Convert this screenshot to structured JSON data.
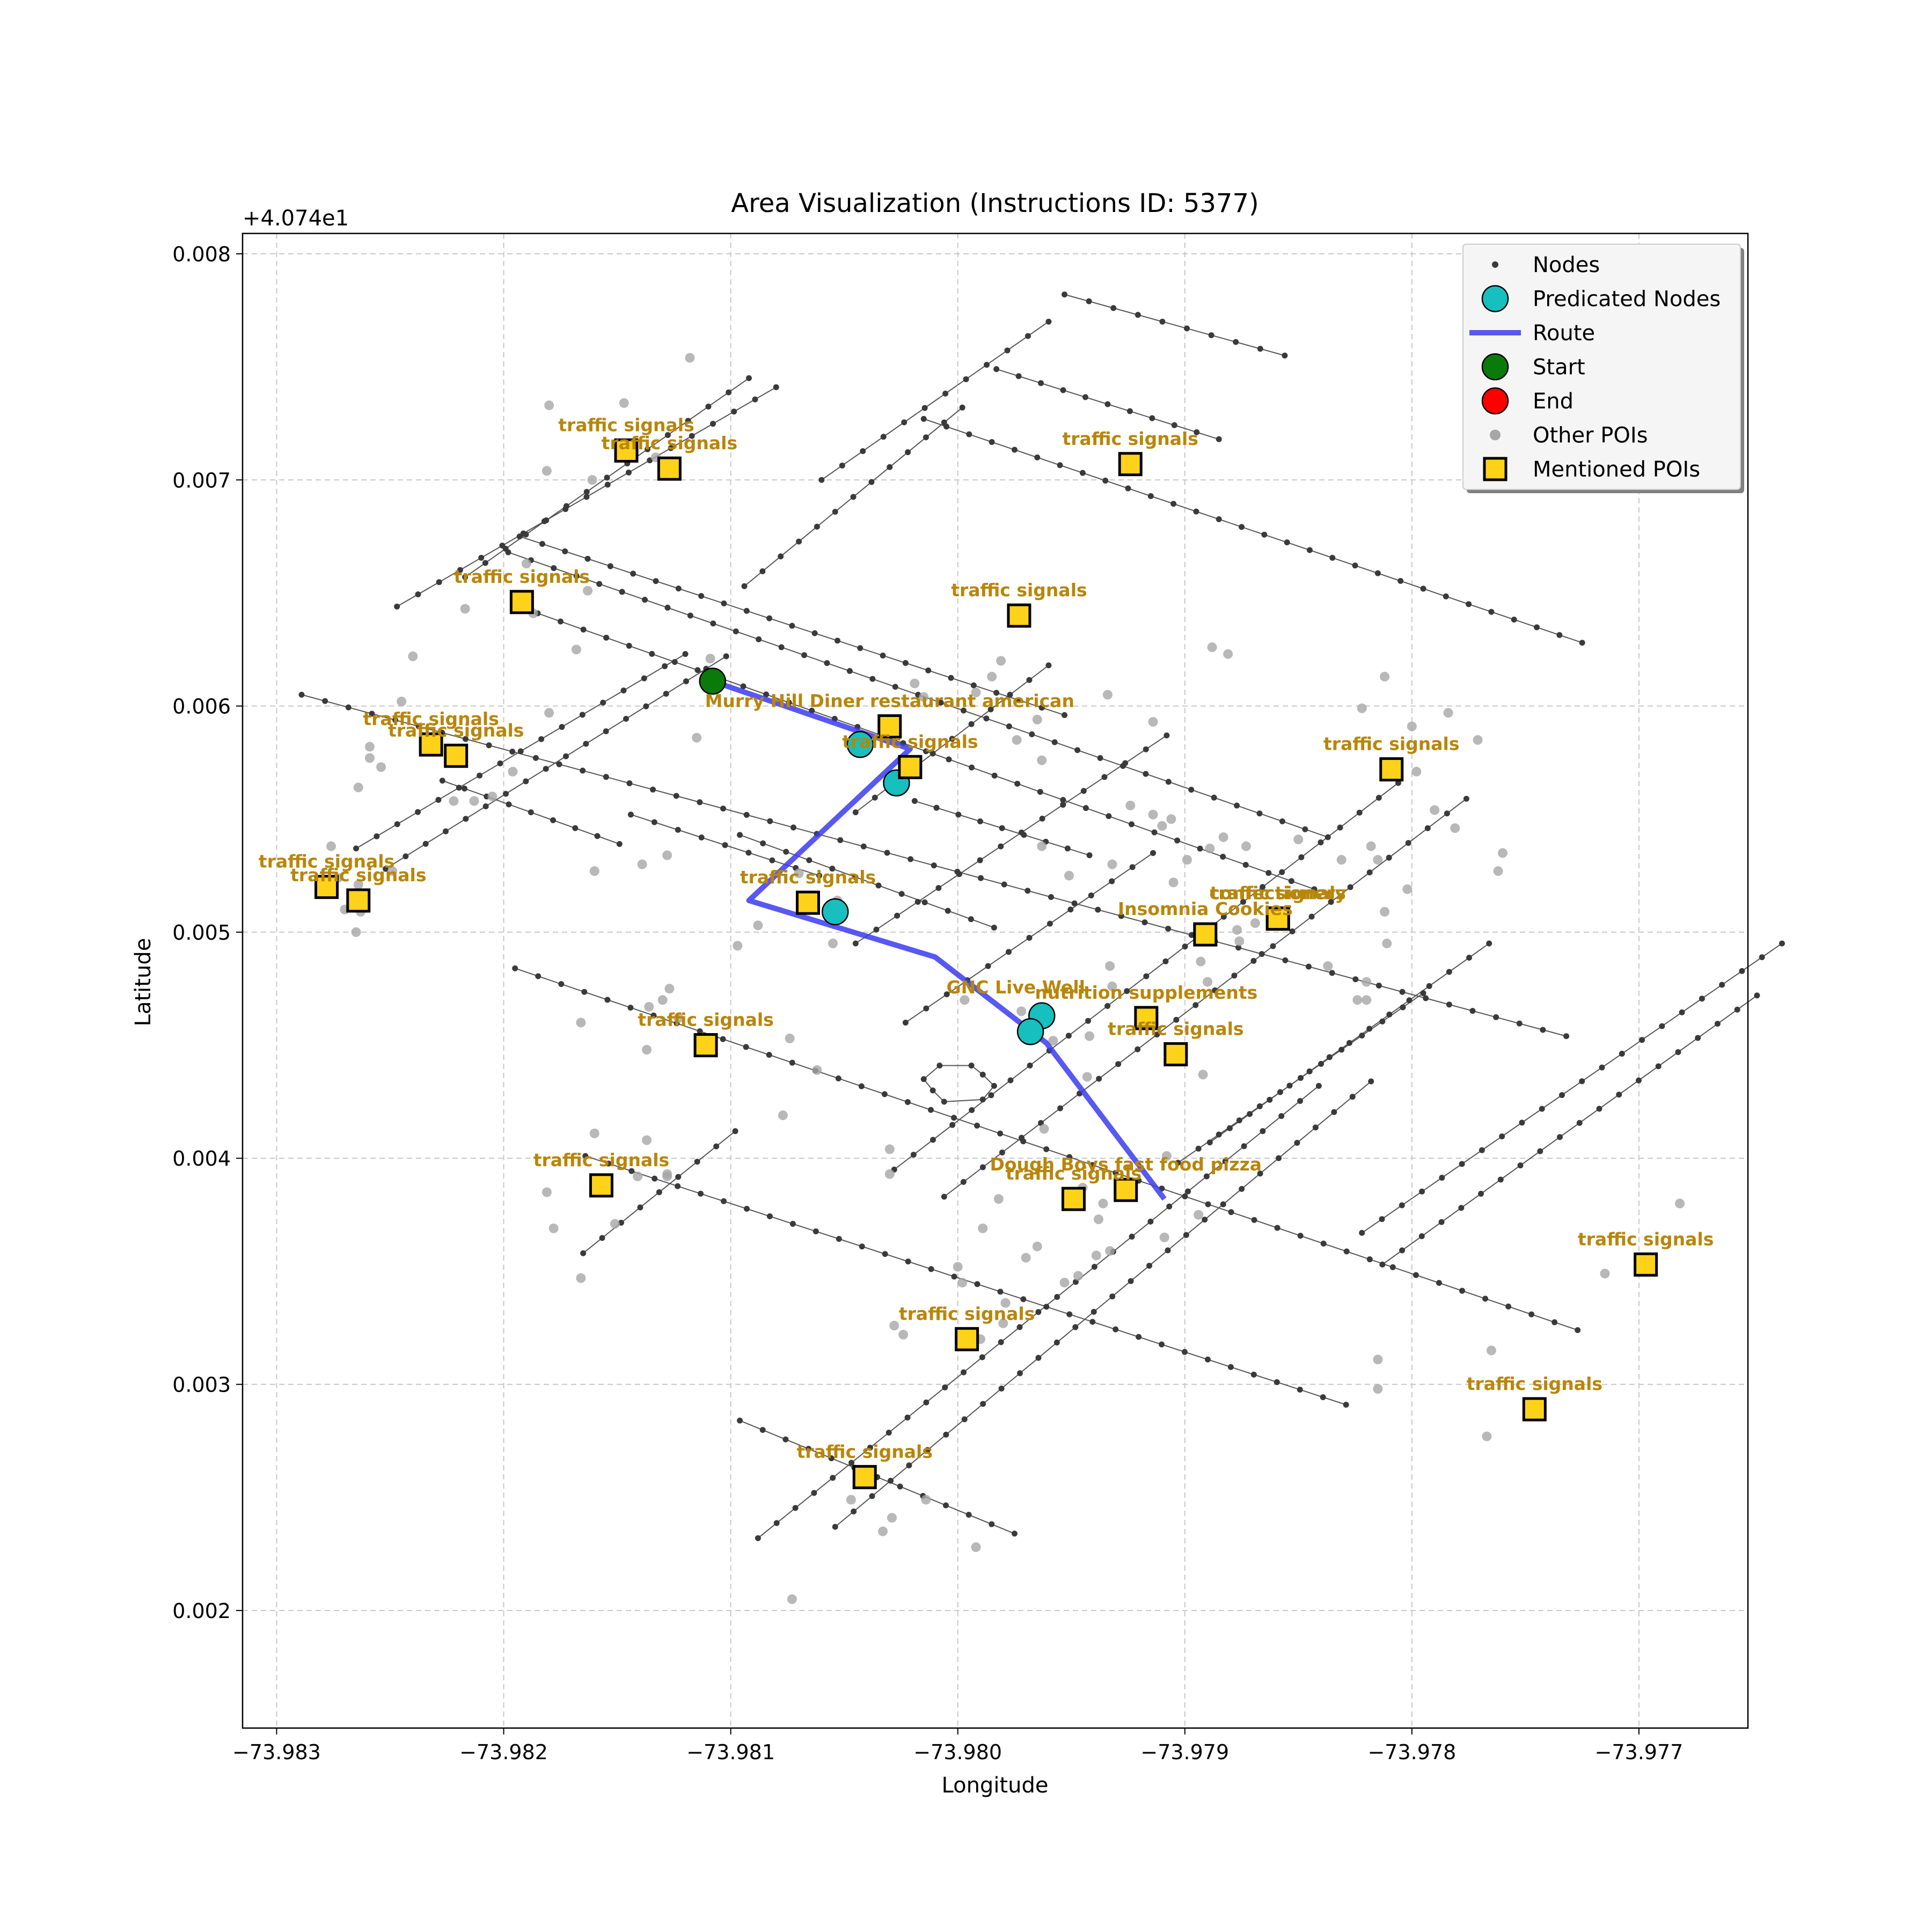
{
  "chart_data": {
    "type": "scatter",
    "title": "Area Visualization (Instructions ID: 5377)",
    "xlabel": "Longitude",
    "ylabel": "Latitude",
    "y_offset_label": "+4.074e1",
    "y_offset": 40.74,
    "xlim": [
      -73.98315,
      -73.97652
    ],
    "ylim": [
      0.00148,
      0.00809
    ],
    "xticks": [
      -73.983,
      -73.982,
      -73.981,
      -73.98,
      -73.979,
      -73.978,
      -73.977
    ],
    "xtick_labels": [
      "−73.983",
      "−73.982",
      "−73.981",
      "−73.980",
      "−73.979",
      "−73.978",
      "−73.977"
    ],
    "yticks": [
      0.002,
      0.003,
      0.004,
      0.005,
      0.006,
      0.007,
      0.008
    ],
    "ytick_labels": [
      "0.002",
      "0.003",
      "0.004",
      "0.005",
      "0.006",
      "0.007",
      "0.008"
    ],
    "grid": true,
    "legend_position": "upper right",
    "legend": [
      {
        "label": "Nodes",
        "marker": "node"
      },
      {
        "label": "Predicated Nodes",
        "marker": "predicated"
      },
      {
        "label": "Route",
        "marker": "route"
      },
      {
        "label": "Start",
        "marker": "start"
      },
      {
        "label": "End",
        "marker": "end"
      },
      {
        "label": "Other POIs",
        "marker": "poi"
      },
      {
        "label": "Mentioned POIs",
        "marker": "mentioned"
      }
    ],
    "colors": {
      "node": "#3a3a3a",
      "edge": "#555555",
      "predicated": "#17bfbf",
      "route": "#3b3bf0",
      "start": "#0a7a0a",
      "end": "#ff0000",
      "poi": "#a6a6a6",
      "mentioned_fill": "#ffd21a",
      "label": "#b8860b"
    },
    "streets": [
      [
        [
          -73.98015,
          0.00727
        ],
        [
          -73.97725,
          0.00628
        ]
      ],
      [
        [
          -73.98198,
          0.00668
        ],
        [
          -73.97837,
          0.00542
        ]
      ],
      [
        [
          -73.98185,
          0.00641
        ],
        [
          -73.97843,
          0.00519
        ]
      ],
      [
        [
          -73.98289,
          0.00605
        ],
        [
          -73.97732,
          0.00454
        ]
      ],
      [
        [
          -73.98195,
          0.00484
        ],
        [
          -73.97727,
          0.00324
        ]
      ],
      [
        [
          -73.98164,
          0.00401
        ],
        [
          -73.97829,
          0.00291
        ]
      ],
      [
        [
          -73.98096,
          0.00284
        ],
        [
          -73.97975,
          0.00234
        ]
      ],
      [
        [
          -73.97953,
          0.00782
        ],
        [
          -73.97856,
          0.00755
        ]
      ],
      [
        [
          -73.97983,
          0.00749
        ],
        [
          -73.97885,
          0.00718
        ]
      ],
      [
        [
          -73.98193,
          0.00675
        ],
        [
          -73.97953,
          0.00596
        ]
      ],
      [
        [
          -73.98144,
          0.00552
        ],
        [
          -73.98061,
          0.00525
        ]
      ],
      [
        [
          -73.98019,
          0.00558
        ],
        [
          -73.97942,
          0.00534
        ]
      ],
      [
        [
          -73.98227,
          0.00567
        ],
        [
          -73.98149,
          0.00539
        ]
      ],
      [
        [
          -73.98096,
          0.00543
        ],
        [
          -73.97984,
          0.00502
        ]
      ]
    ],
    "avenues": [
      [
        [
          -73.98217,
          0.00657
        ],
        [
          -73.98092,
          0.00745
        ]
      ],
      [
        [
          -73.98247,
          0.00644
        ],
        [
          -73.9808,
          0.00741
        ]
      ],
      [
        [
          -73.98265,
          0.00537
        ],
        [
          -73.9812,
          0.00623
        ]
      ],
      [
        [
          -73.98252,
          0.00528
        ],
        [
          -73.98102,
          0.00622
        ]
      ],
      [
        [
          -73.98165,
          0.00358
        ],
        [
          -73.98098,
          0.00412
        ]
      ],
      [
        [
          -73.98088,
          0.00232
        ],
        [
          -73.97841,
          0.00432
        ]
      ],
      [
        [
          -73.98054,
          0.00237
        ],
        [
          -73.97818,
          0.00434
        ]
      ],
      [
        [
          -73.98028,
          0.00395
        ],
        [
          -73.97806,
          0.00566
        ]
      ],
      [
        [
          -73.98006,
          0.00383
        ],
        [
          -73.97776,
          0.00559
        ]
      ],
      [
        [
          -73.97813,
          0.00353
        ],
        [
          -73.97648,
          0.00472
        ]
      ],
      [
        [
          -73.97822,
          0.00367
        ],
        [
          -73.97637,
          0.00495
        ]
      ],
      [
        [
          -73.97903,
          0.00398
        ],
        [
          -73.97795,
          0.00473
        ]
      ],
      [
        [
          -73.97889,
          0.00407
        ],
        [
          -73.97766,
          0.00495
        ]
      ],
      [
        [
          -73.98023,
          0.0046
        ],
        [
          -73.97914,
          0.00535
        ]
      ],
      [
        [
          -73.98045,
          0.00495
        ],
        [
          -73.97908,
          0.00587
        ]
      ],
      [
        [
          -73.98045,
          0.00553
        ],
        [
          -73.9796,
          0.00618
        ]
      ],
      [
        [
          -73.98094,
          0.00653
        ],
        [
          -73.97998,
          0.00732
        ]
      ],
      [
        [
          -73.9806,
          0.007
        ],
        [
          -73.9796,
          0.0077
        ]
      ]
    ],
    "route": [
      [
        -73.98108,
        0.00611
      ],
      [
        -73.98021,
        0.00581
      ],
      [
        -73.98092,
        0.00514
      ],
      [
        -73.9801,
        0.00489
      ],
      [
        -73.97961,
        0.00451
      ],
      [
        -73.97909,
        0.00382
      ]
    ],
    "start": [
      -73.98108,
      0.00611
    ],
    "predicated_nodes": [
      [
        -73.98043,
        0.00583
      ],
      [
        -73.98027,
        0.00566
      ],
      [
        -73.98054,
        0.00509
      ],
      [
        -73.97963,
        0.00463
      ],
      [
        -73.97968,
        0.00456
      ]
    ],
    "mentioned_pois": [
      {
        "x": -73.98146,
        "y": 0.00713,
        "label": "traffic signals"
      },
      {
        "x": -73.98127,
        "y": 0.00705,
        "label": "traffic signals"
      },
      {
        "x": -73.97924,
        "y": 0.00707,
        "label": "traffic signals"
      },
      {
        "x": -73.98192,
        "y": 0.00646,
        "label": "traffic signals"
      },
      {
        "x": -73.97973,
        "y": 0.0064,
        "label": "traffic signals"
      },
      {
        "x": -73.98232,
        "y": 0.00583,
        "label": "traffic signals"
      },
      {
        "x": -73.98221,
        "y": 0.00578,
        "label": "traffic signals"
      },
      {
        "x": -73.9803,
        "y": 0.00591,
        "label": "Murry Hill Diner restaurant american"
      },
      {
        "x": -73.98021,
        "y": 0.00573,
        "label": "traffic signals"
      },
      {
        "x": -73.97809,
        "y": 0.00572,
        "label": "traffic signals"
      },
      {
        "x": -73.98278,
        "y": 0.0052,
        "label": "traffic signals"
      },
      {
        "x": -73.98264,
        "y": 0.00514,
        "label": "traffic signals"
      },
      {
        "x": -73.98066,
        "y": 0.00513,
        "label": "traffic signals"
      },
      {
        "x": -73.97859,
        "y": 0.00506,
        "label": "traffic signals"
      },
      {
        "x": -73.97891,
        "y": 0.00499,
        "label": "Insomnia Cookies"
      },
      {
        "x": -73.97859,
        "y": 0.00506,
        "label": "confectionery"
      },
      {
        "x": -73.97917,
        "y": 0.00462,
        "label": "nutrition supplements"
      },
      {
        "x": -73.97904,
        "y": 0.00446,
        "label": "traffic signals"
      },
      {
        "x": -73.98111,
        "y": 0.0045,
        "label": "traffic signals"
      },
      {
        "x": -73.98157,
        "y": 0.00388,
        "label": "traffic signals"
      },
      {
        "x": -73.97949,
        "y": 0.00382,
        "label": "traffic signals"
      },
      {
        "x": -73.97926,
        "y": 0.00386,
        "label": "Dough Boys fast food pizza"
      },
      {
        "x": -73.97697,
        "y": 0.00353,
        "label": "traffic signals"
      },
      {
        "x": -73.97996,
        "y": 0.0032,
        "label": "traffic signals"
      },
      {
        "x": -73.97746,
        "y": 0.00289,
        "label": "traffic signals"
      },
      {
        "x": -73.98041,
        "y": 0.00259,
        "label": "traffic signals"
      }
    ],
    "poi_labels_only": [
      {
        "x": -73.97965,
        "y": 0.00463,
        "label": "GNC Live Well"
      }
    ],
    "other_pois": [
      [
        -73.98118,
        0.00754
      ],
      [
        -73.9818,
        0.00733
      ],
      [
        -73.98147,
        0.00734
      ],
      [
        -73.98133,
        0.0071
      ],
      [
        -73.98181,
        0.00704
      ],
      [
        -73.98161,
        0.007
      ],
      [
        -73.9819,
        0.00663
      ],
      [
        -73.98163,
        0.00651
      ],
      [
        -73.98187,
        0.00641
      ],
      [
        -73.98168,
        0.00625
      ],
      [
        -73.9818,
        0.00597
      ],
      [
        -73.98109,
        0.00621
      ],
      [
        -73.98217,
        0.00643
      ],
      [
        -73.9824,
        0.00622
      ],
      [
        -73.98245,
        0.00602
      ],
      [
        -73.98259,
        0.00582
      ],
      [
        -73.98259,
        0.00577
      ],
      [
        -73.98254,
        0.00573
      ],
      [
        -73.98264,
        0.00564
      ],
      [
        -73.98222,
        0.00558
      ],
      [
        -73.98213,
        0.00558
      ],
      [
        -73.98205,
        0.0056
      ],
      [
        -73.98196,
        0.00571
      ],
      [
        -73.98115,
        0.00586
      ],
      [
        -73.98276,
        0.00538
      ],
      [
        -73.98273,
        0.00524
      ],
      [
        -73.98264,
        0.00521
      ],
      [
        -73.98249,
        0.00527
      ],
      [
        -73.98263,
        0.00509
      ],
      [
        -73.9827,
        0.0051
      ],
      [
        -73.98265,
        0.005
      ],
      [
        -73.9816,
        0.00527
      ],
      [
        -73.98139,
        0.0053
      ],
      [
        -73.98128,
        0.00534
      ],
      [
        -73.9807,
        0.00526
      ],
      [
        -73.98053,
        0.00514
      ],
      [
        -73.98055,
        0.00495
      ],
      [
        -73.98088,
        0.00503
      ],
      [
        -73.98097,
        0.00494
      ],
      [
        -73.98166,
        0.0046
      ],
      [
        -73.98136,
        0.00467
      ],
      [
        -73.9813,
        0.0047
      ],
      [
        -73.98127,
        0.00475
      ],
      [
        -73.98123,
        0.00462
      ],
      [
        -73.98137,
        0.00448
      ],
      [
        -73.98074,
        0.00453
      ],
      [
        -73.98062,
        0.00439
      ],
      [
        -73.98112,
        0.00451
      ],
      [
        -73.9816,
        0.00411
      ],
      [
        -73.98181,
        0.00385
      ],
      [
        -73.98178,
        0.00369
      ],
      [
        -73.98137,
        0.00408
      ],
      [
        -73.98141,
        0.00392
      ],
      [
        -73.98128,
        0.00393
      ],
      [
        -73.98128,
        0.00392
      ],
      [
        -73.98166,
        0.00347
      ],
      [
        -73.98151,
        0.00371
      ],
      [
        -73.98077,
        0.00419
      ],
      [
        -73.98019,
        0.0061
      ],
      [
        -73.98015,
        0.00604
      ],
      [
        -73.97992,
        0.00606
      ],
      [
        -73.97974,
        0.00585
      ],
      [
        -73.97985,
        0.00613
      ],
      [
        -73.97981,
        0.0062
      ],
      [
        -73.97965,
        0.00594
      ],
      [
        -73.97963,
        0.00576
      ],
      [
        -73.97934,
        0.00605
      ],
      [
        -73.97914,
        0.00593
      ],
      [
        -73.97881,
        0.00623
      ],
      [
        -73.97888,
        0.00626
      ],
      [
        -73.97924,
        0.00556
      ],
      [
        -73.97914,
        0.00552
      ],
      [
        -73.97906,
        0.0055
      ],
      [
        -73.97883,
        0.00542
      ],
      [
        -73.97889,
        0.00537
      ],
      [
        -73.97873,
        0.00538
      ],
      [
        -73.9791,
        0.00547
      ],
      [
        -73.97932,
        0.0053
      ],
      [
        -73.97951,
        0.00525
      ],
      [
        -73.97963,
        0.00538
      ],
      [
        -73.97905,
        0.00522
      ],
      [
        -73.97899,
        0.00532
      ],
      [
        -73.97876,
        0.00496
      ],
      [
        -73.97877,
        0.00501
      ],
      [
        -73.97888,
        0.00501
      ],
      [
        -73.97869,
        0.00504
      ],
      [
        -73.9789,
        0.00478
      ],
      [
        -73.97893,
        0.00487
      ],
      [
        -73.97997,
        0.0047
      ],
      [
        -73.97933,
        0.00485
      ],
      [
        -73.97932,
        0.00476
      ],
      [
        -73.97972,
        0.00465
      ],
      [
        -73.97958,
        0.00452
      ],
      [
        -73.97942,
        0.00454
      ],
      [
        -73.97943,
        0.00436
      ],
      [
        -73.97892,
        0.00437
      ],
      [
        -73.97908,
        0.00401
      ],
      [
        -73.97962,
        0.00413
      ],
      [
        -73.97945,
        0.00387
      ],
      [
        -73.97936,
        0.0038
      ],
      [
        -73.97938,
        0.00373
      ],
      [
        -73.97909,
        0.00365
      ],
      [
        -73.97894,
        0.00375
      ],
      [
        -73.97933,
        0.00359
      ],
      [
        -73.97939,
        0.00357
      ],
      [
        -73.97947,
        0.00348
      ],
      [
        -73.97953,
        0.00345
      ],
      [
        -73.97982,
        0.00382
      ],
      [
        -73.97989,
        0.00369
      ],
      [
        -73.97965,
        0.00361
      ],
      [
        -73.9797,
        0.00356
      ],
      [
        -73.98,
        0.00352
      ],
      [
        -73.97998,
        0.00345
      ],
      [
        -73.98028,
        0.00326
      ],
      [
        -73.98024,
        0.00322
      ],
      [
        -73.9803,
        0.00404
      ],
      [
        -73.9803,
        0.00393
      ],
      [
        -73.9799,
        0.0032
      ],
      [
        -73.9798,
        0.00327
      ],
      [
        -73.97979,
        0.00336
      ],
      [
        -73.9785,
        0.00541
      ],
      [
        -73.97831,
        0.00532
      ],
      [
        -73.97812,
        0.00509
      ],
      [
        -73.97811,
        0.00495
      ],
      [
        -73.9782,
        0.00478
      ],
      [
        -73.97837,
        0.00485
      ],
      [
        -73.97822,
        0.00599
      ],
      [
        -73.97812,
        0.00613
      ],
      [
        -73.978,
        0.00591
      ],
      [
        -73.97771,
        0.00585
      ],
      [
        -73.97784,
        0.00597
      ],
      [
        -73.97798,
        0.00571
      ],
      [
        -73.97818,
        0.00538
      ],
      [
        -73.97815,
        0.00532
      ],
      [
        -73.97802,
        0.00519
      ],
      [
        -73.97781,
        0.00546
      ],
      [
        -73.9779,
        0.00554
      ],
      [
        -73.9776,
        0.00535
      ],
      [
        -73.97762,
        0.00527
      ],
      [
        -73.97824,
        0.0047
      ],
      [
        -73.9782,
        0.0047
      ],
      [
        -73.97765,
        0.00315
      ],
      [
        -73.97767,
        0.00277
      ],
      [
        -73.97815,
        0.00311
      ],
      [
        -73.97815,
        0.00298
      ],
      [
        -73.97715,
        0.00349
      ],
      [
        -73.97682,
        0.0038
      ],
      [
        -73.98014,
        0.00249
      ],
      [
        -73.98029,
        0.00241
      ],
      [
        -73.98033,
        0.00235
      ],
      [
        -73.98047,
        0.00249
      ],
      [
        -73.98073,
        0.00205
      ],
      [
        -73.97992,
        0.00228
      ]
    ],
    "extra_nodes": [
      [
        -73.98008,
        0.00441
      ],
      [
        -73.97994,
        0.00441
      ],
      [
        -73.97989,
        0.00437
      ],
      [
        -73.97984,
        0.00432
      ],
      [
        -73.97989,
        0.00426
      ],
      [
        -73.98006,
        0.00425
      ],
      [
        -73.98011,
        0.0043
      ],
      [
        -73.98015,
        0.00435
      ]
    ]
  }
}
